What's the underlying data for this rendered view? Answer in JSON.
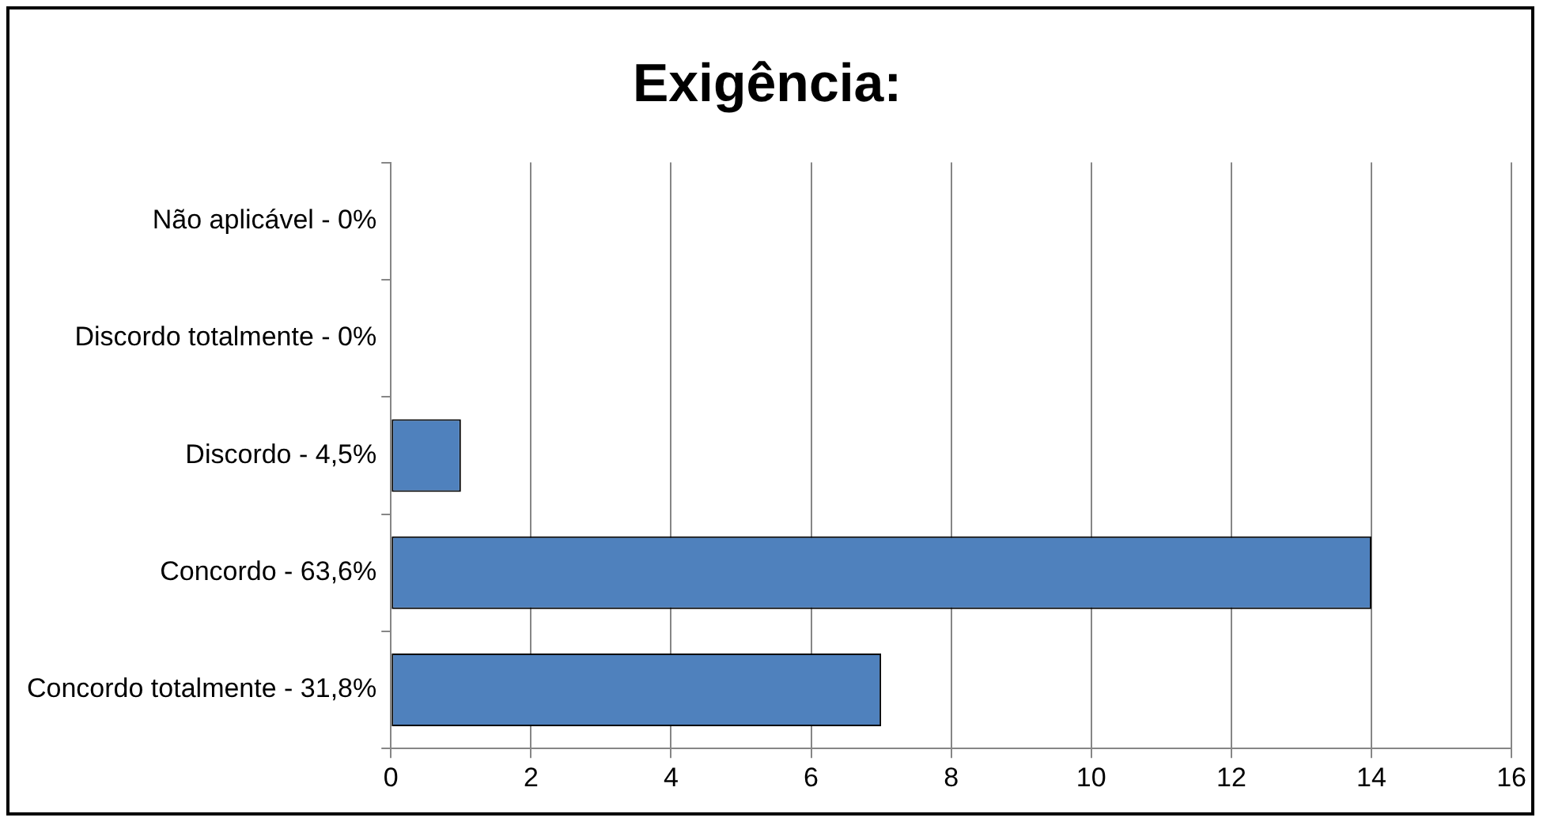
{
  "chart_data": {
    "type": "bar",
    "orientation": "horizontal",
    "title": "Exigência:",
    "categories": [
      "Não aplicável - 0%",
      "Discordo totalmente - 0%",
      "Discordo - 4,5%",
      "Concordo - 63,6%",
      "Concordo totalmente - 31,8%"
    ],
    "values": [
      0,
      0,
      1,
      14,
      7
    ],
    "color": "#4f81bd",
    "xlim": [
      0,
      16
    ],
    "xticks": [
      0,
      2,
      4,
      6,
      8,
      10,
      12,
      14,
      16
    ],
    "grid": "x",
    "legend": false
  }
}
